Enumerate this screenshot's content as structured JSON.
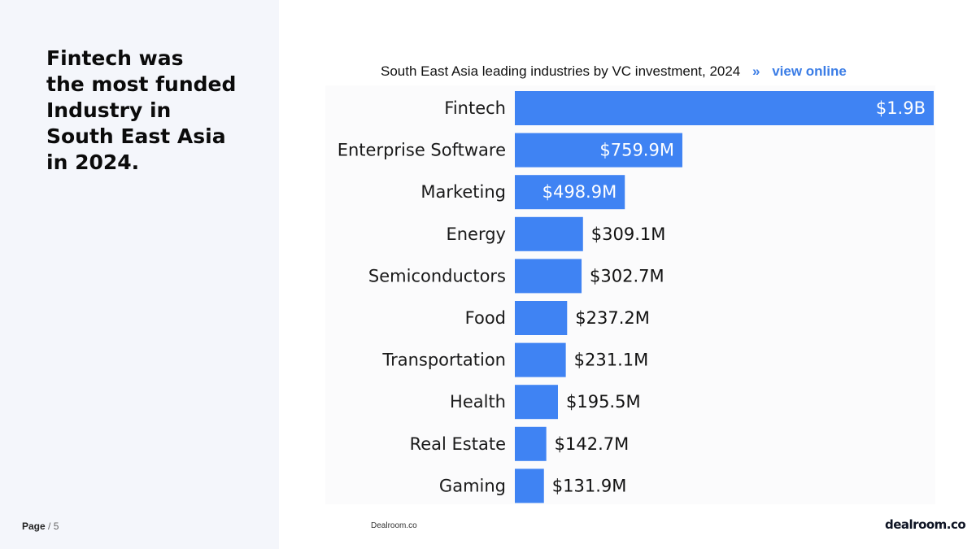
{
  "headline": {
    "lines": [
      "Fintech was",
      "the most funded",
      "Industry in",
      "South East Asia",
      "in 2024."
    ]
  },
  "footer": {
    "page_label": "Page",
    "page_sep": "/",
    "page_number": "5",
    "source": "Dealroom.co",
    "logo": "dealroom.co"
  },
  "chart_link": {
    "arrow": "»",
    "label": "view online"
  },
  "colors": {
    "bar": "#3f83f3",
    "inside_label": "#ffffff",
    "outside_label": "#111111"
  },
  "chart_data": {
    "type": "bar",
    "orientation": "horizontal",
    "title": "South East Asia leading industries by VC investment, 2024",
    "categories": [
      "Fintech",
      "Enterprise Software",
      "Marketing",
      "Energy",
      "Semiconductors",
      "Food",
      "Transportation",
      "Health",
      "Real Estate",
      "Gaming"
    ],
    "values": [
      1900,
      759.9,
      498.9,
      309.1,
      302.7,
      237.2,
      231.1,
      195.5,
      142.7,
      131.9
    ],
    "value_unit": "$M",
    "data_labels": [
      "$1.9B",
      "$759.9M",
      "$498.9M",
      "$309.1M",
      "$302.7M",
      "$237.2M",
      "$231.1M",
      "$195.5M",
      "$142.7M",
      "$131.9M"
    ],
    "xlim": [
      0,
      1950
    ],
    "grid": false,
    "legend": "none"
  }
}
